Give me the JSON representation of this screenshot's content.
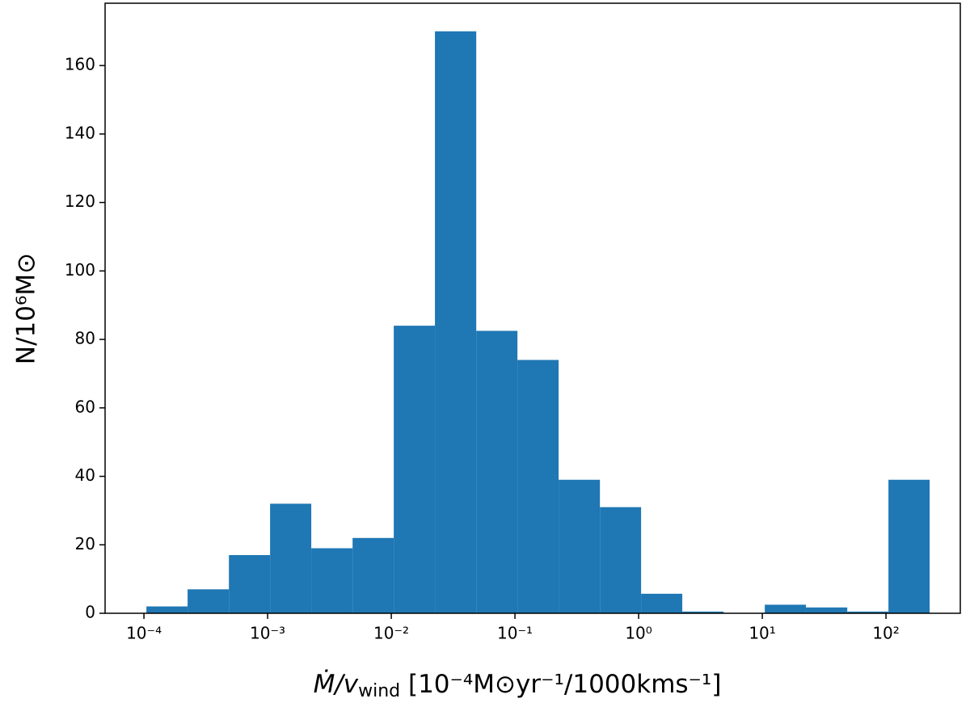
{
  "chart_data": {
    "type": "histogram",
    "bins": [
      0.0001047,
      0.0002254,
      0.0004864,
      0.001047,
      0.002254,
      0.004864,
      0.01047,
      0.02254,
      0.04864,
      0.1047,
      0.2254,
      0.4864,
      1.047,
      2.254,
      4.864,
      10.47,
      22.54,
      48.64,
      104.7,
      225.4
    ],
    "counts": [
      2,
      7,
      17,
      32,
      19,
      22,
      84,
      170,
      82.5,
      74,
      39,
      31,
      5.7,
      0.5,
      0,
      2.5,
      1.7,
      0.5,
      39
    ],
    "color": "#1f77b4",
    "xscale": "log",
    "xlim": [
      4.85e-05,
      399
    ],
    "xticks": [
      {
        "value": 0.0001,
        "label": "10⁻⁴"
      },
      {
        "value": 0.001,
        "label": "10⁻³"
      },
      {
        "value": 0.01,
        "label": "10⁻²"
      },
      {
        "value": 0.1,
        "label": "10⁻¹"
      },
      {
        "value": 1,
        "label": "10⁰"
      },
      {
        "value": 10,
        "label": "10¹"
      },
      {
        "value": 100,
        "label": "10²"
      }
    ],
    "ylim": [
      0,
      178.2
    ],
    "yticks": [
      0,
      20,
      40,
      60,
      80,
      100,
      120,
      140,
      160
    ],
    "x_label": [
      "Ṁ/v",
      "wind",
      " [10⁻⁴M⊙yr⁻¹/1000kms⁻¹]"
    ],
    "y_label": "N/10⁶M⊙"
  }
}
